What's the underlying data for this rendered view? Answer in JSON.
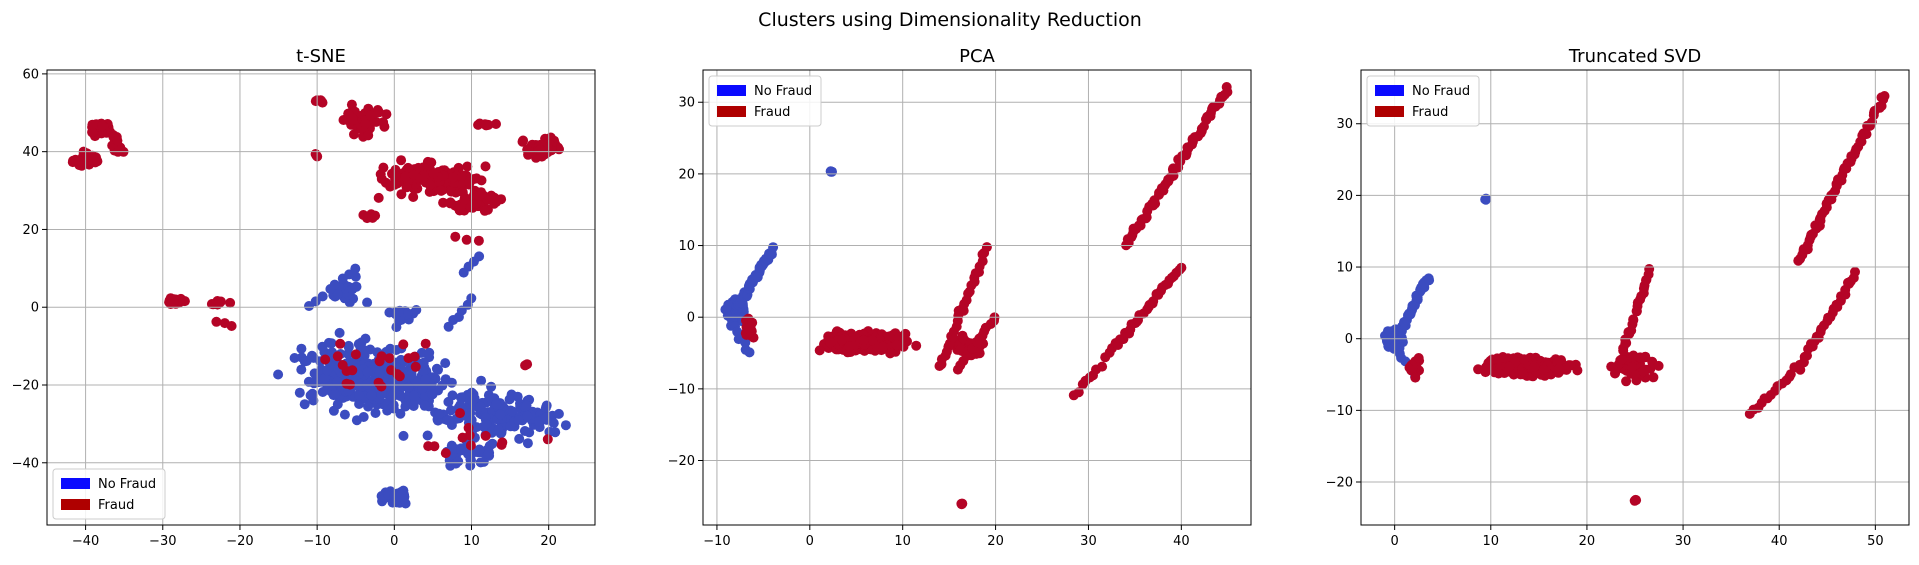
{
  "figure": {
    "title": "Clusters using Dimensionality Reduction"
  },
  "legend_labels": [
    "No Fraud",
    "Fraud"
  ],
  "colors": {
    "no_fraud_points": "#3b4cc0",
    "fraud_points": "#b40426",
    "no_fraud_legend": "#0a0aff",
    "fraud_legend": "#af0000"
  },
  "chart_data": [
    {
      "type": "scatter",
      "title": "t-SNE",
      "xlim": [
        -45,
        26
      ],
      "ylim": [
        -56,
        61
      ],
      "xticks": [
        -40,
        -30,
        -20,
        -10,
        0,
        10,
        20
      ],
      "yticks": [
        -40,
        -20,
        0,
        20,
        40,
        60
      ],
      "grid": true,
      "legend_position": "lower-left",
      "series": [
        {
          "name": "No Fraud",
          "color": "#3b4cc0",
          "clusters": [
            {
              "center": [
                -3,
                -18
              ],
              "spread": [
                11,
                10
              ],
              "n": 380
            },
            {
              "center": [
                12,
                -28
              ],
              "spread": [
                10,
                8
              ],
              "n": 120
            },
            {
              "center": [
                18,
                -28
              ],
              "spread": [
                4,
                3
              ],
              "n": 40
            },
            {
              "center": [
                0,
                -49
              ],
              "spread": [
                2.5,
                1.8
              ],
              "n": 45
            },
            {
              "center": [
                -6,
                4
              ],
              "spread": [
                3,
                4
              ],
              "n": 25
            },
            {
              "center": [
                10,
                -38
              ],
              "spread": [
                4,
                3
              ],
              "n": 30
            },
            {
              "center": [
                1,
                -2
              ],
              "spread": [
                3,
                3
              ],
              "n": 20
            }
          ],
          "paths": [
            {
              "from": [
                9,
                9
              ],
              "to": [
                11,
                13
              ],
              "n": 4
            },
            {
              "from": [
                -11,
                0
              ],
              "to": [
                -5,
                10
              ],
              "n": 8
            },
            {
              "from": [
                7,
                -5
              ],
              "to": [
                10,
                2
              ],
              "n": 6
            }
          ]
        },
        {
          "name": "Fraud",
          "color": "#b40426",
          "clusters": [
            {
              "center": [
                -40,
                38
              ],
              "spread": [
                1.5,
                2.2
              ],
              "n": 35
            },
            {
              "center": [
                -38,
                46
              ],
              "spread": [
                2,
                2
              ],
              "n": 35
            },
            {
              "center": [
                -36,
                42
              ],
              "spread": [
                1,
                3
              ],
              "n": 15
            },
            {
              "center": [
                -4,
                48
              ],
              "spread": [
                3,
                3.5
              ],
              "n": 50
            },
            {
              "center": [
                -10,
                53
              ],
              "spread": [
                1,
                0.5
              ],
              "n": 6
            },
            {
              "center": [
                -10,
                39
              ],
              "spread": [
                0.5,
                0.5
              ],
              "n": 3
            },
            {
              "center": [
                5,
                33
              ],
              "spread": [
                7,
                4
              ],
              "n": 150
            },
            {
              "center": [
                10,
                27
              ],
              "spread": [
                4,
                3
              ],
              "n": 60
            },
            {
              "center": [
                19,
                41
              ],
              "spread": [
                3,
                2.5
              ],
              "n": 50
            },
            {
              "center": [
                12,
                47
              ],
              "spread": [
                1.5,
                0.5
              ],
              "n": 8
            },
            {
              "center": [
                -28.5,
                1.5
              ],
              "spread": [
                1.5,
                1.2
              ],
              "n": 20
            },
            {
              "center": [
                -23,
                1
              ],
              "spread": [
                1.5,
                1
              ],
              "n": 10
            },
            {
              "center": [
                -3,
                23
              ],
              "spread": [
                1.5,
                1.5
              ],
              "n": 6
            },
            {
              "center": [
                -2,
                -15
              ],
              "spread": [
                8,
                8
              ],
              "n": 22
            },
            {
              "center": [
                12,
                -32
              ],
              "spread": [
                8,
                8
              ],
              "n": 12
            },
            {
              "center": [
                17,
                -15
              ],
              "spread": [
                1,
                1
              ],
              "n": 2
            }
          ],
          "paths": [
            {
              "from": [
                -21,
                -5
              ],
              "to": [
                -23,
                -4
              ],
              "n": 3
            },
            {
              "from": [
                8,
                18
              ],
              "to": [
                11,
                17
              ],
              "n": 3
            }
          ]
        }
      ]
    },
    {
      "type": "scatter",
      "title": "PCA",
      "xlim": [
        -11.5,
        47.5
      ],
      "ylim": [
        -29,
        34.5
      ],
      "xticks": [
        -10,
        0,
        10,
        20,
        30,
        40
      ],
      "yticks": [
        -20,
        -10,
        0,
        10,
        20,
        30
      ],
      "grid": true,
      "legend_position": "upper-left",
      "series": [
        {
          "name": "No Fraud",
          "color": "#3b4cc0",
          "clusters": [
            {
              "center": [
                -8,
                1
              ],
              "spread": [
                0.9,
                1.3
              ],
              "n": 260
            },
            {
              "center": [
                2.3,
                20.3
              ],
              "spread": [
                0.2,
                0.2
              ],
              "n": 3
            }
          ],
          "paths": [
            {
              "from": [
                -8,
                1
              ],
              "to": [
                -4,
                9.5
              ],
              "n": 50
            },
            {
              "from": [
                -8.5,
                -1
              ],
              "to": [
                -6.5,
                -5
              ],
              "n": 8
            }
          ]
        },
        {
          "name": "Fraud",
          "color": "#b40426",
          "clusters": [
            {
              "center": [
                6,
                -3.5
              ],
              "spread": [
                4.5,
                1.4
              ],
              "n": 400
            },
            {
              "center": [
                17,
                -4
              ],
              "spread": [
                1.8,
                1.4
              ],
              "n": 60
            },
            {
              "center": [
                -6.5,
                -1.5
              ],
              "spread": [
                0.5,
                1.6
              ],
              "n": 25
            },
            {
              "center": [
                16.4,
                -26
              ],
              "spread": [
                0.15,
                0.15
              ],
              "n": 3
            }
          ],
          "paths": [
            {
              "from": [
                14,
                -7
              ],
              "to": [
                19,
                9.5
              ],
              "n": 30
            },
            {
              "from": [
                16,
                -7
              ],
              "to": [
                20,
                0
              ],
              "n": 15
            },
            {
              "from": [
                28.5,
                -11
              ],
              "to": [
                33,
                -4
              ],
              "n": 12
            },
            {
              "from": [
                33,
                -4
              ],
              "to": [
                40,
                7
              ],
              "n": 30
            },
            {
              "from": [
                34,
                10
              ],
              "to": [
                45,
                32
              ],
              "n": 65
            }
          ]
        }
      ]
    },
    {
      "type": "scatter",
      "title": "Truncated SVD",
      "xlim": [
        -3.5,
        53.5
      ],
      "ylim": [
        -26,
        37.5
      ],
      "xticks": [
        0,
        10,
        20,
        30,
        40,
        50
      ],
      "yticks": [
        -20,
        -10,
        0,
        10,
        20,
        30
      ],
      "grid": true,
      "legend_position": "upper-left",
      "series": [
        {
          "name": "No Fraud",
          "color": "#3b4cc0",
          "clusters": [
            {
              "center": [
                0,
                0
              ],
              "spread": [
                0.9,
                1.2
              ],
              "n": 200
            },
            {
              "center": [
                9.5,
                19.5
              ],
              "spread": [
                0.2,
                0.2
              ],
              "n": 3
            }
          ],
          "paths": [
            {
              "from": [
                0.5,
                1
              ],
              "to": [
                3.5,
                8.5
              ],
              "n": 35
            },
            {
              "from": [
                0,
                -1
              ],
              "to": [
                2,
                -5
              ],
              "n": 8
            }
          ]
        },
        {
          "name": "Fraud",
          "color": "#b40426",
          "clusters": [
            {
              "center": [
                14,
                -4
              ],
              "spread": [
                4.5,
                1.2
              ],
              "n": 400
            },
            {
              "center": [
                25,
                -4
              ],
              "spread": [
                2.5,
                1.8
              ],
              "n": 60
            },
            {
              "center": [
                2,
                -4
              ],
              "spread": [
                0.6,
                1.5
              ],
              "n": 20
            },
            {
              "center": [
                25,
                -22.5
              ],
              "spread": [
                0.15,
                0.15
              ],
              "n": 3
            }
          ],
          "paths": [
            {
              "from": [
                23,
                -5
              ],
              "to": [
                26.5,
                9.5
              ],
              "n": 30
            },
            {
              "from": [
                37,
                -10.5
              ],
              "to": [
                42,
                -4
              ],
              "n": 15
            },
            {
              "from": [
                42,
                -4
              ],
              "to": [
                48,
                9
              ],
              "n": 30
            },
            {
              "from": [
                42,
                11
              ],
              "to": [
                51,
                34
              ],
              "n": 60
            }
          ]
        }
      ]
    }
  ]
}
